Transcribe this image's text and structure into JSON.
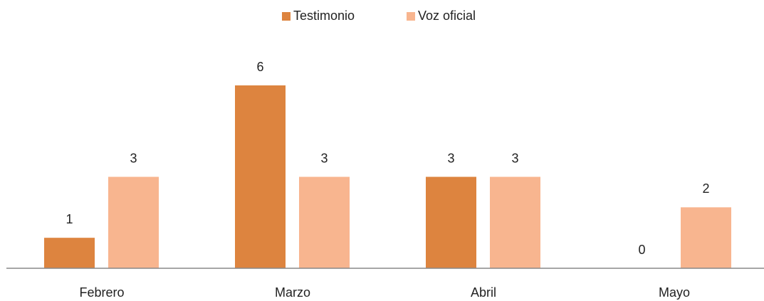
{
  "chart_data": {
    "type": "bar",
    "categories": [
      "Febrero",
      "Marzo",
      "Abril",
      "Mayo"
    ],
    "series": [
      {
        "name": "Testimonio",
        "color": "#dd843f",
        "values": [
          1,
          6,
          3,
          0
        ]
      },
      {
        "name": "Voz oficial",
        "color": "#f8b58f",
        "values": [
          3,
          3,
          3,
          2
        ]
      }
    ],
    "ylim": [
      0,
      6
    ],
    "legend": "top"
  }
}
